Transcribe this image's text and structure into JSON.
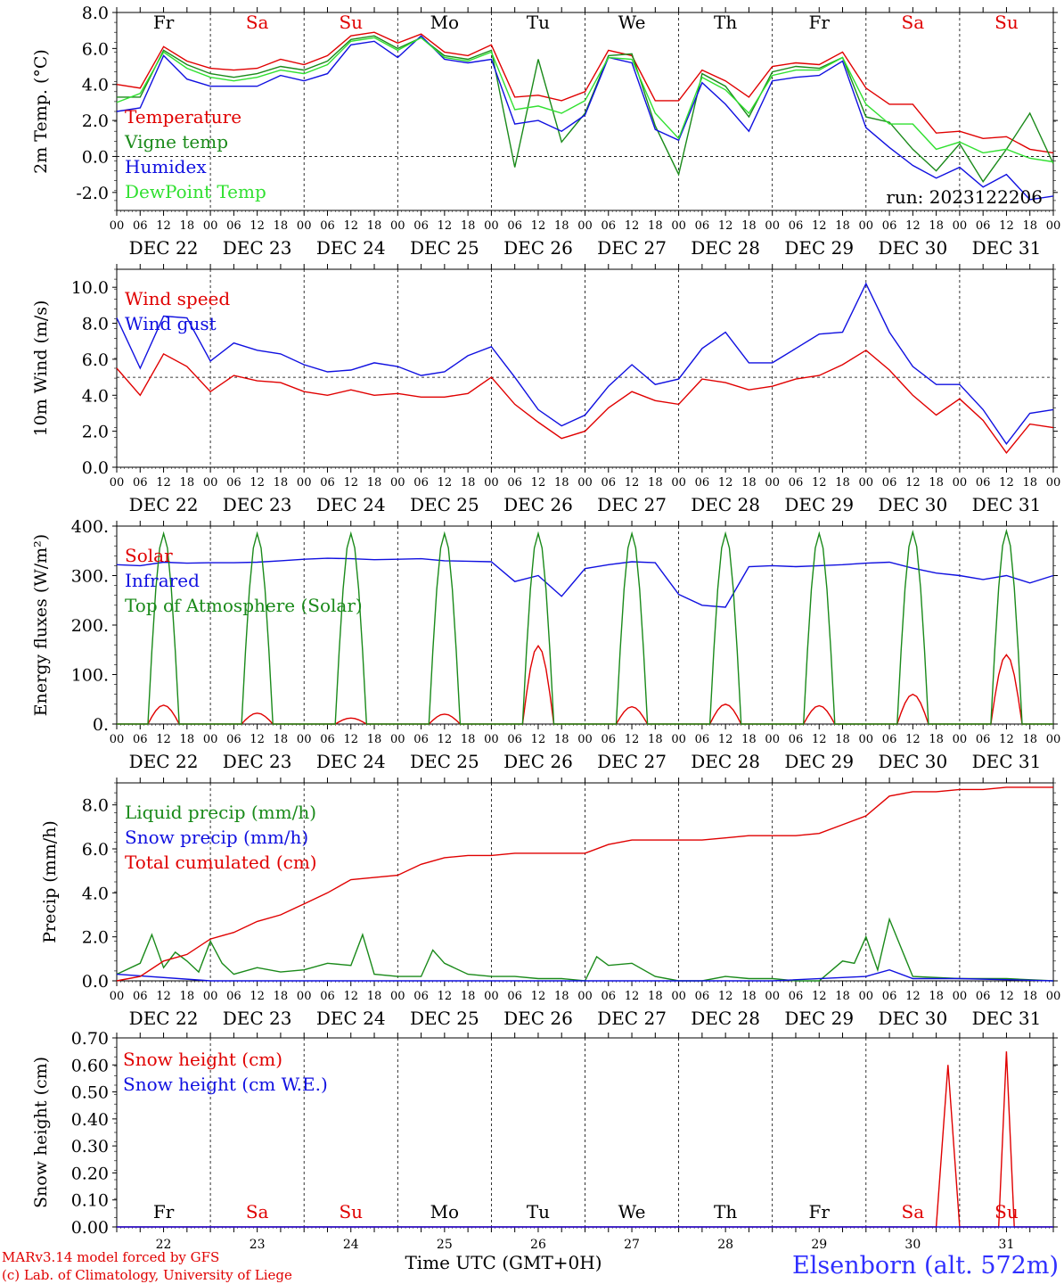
{
  "page": {
    "footer_model": "MARv3.14 model forced by GFS",
    "footer_lab": "(c) Lab. of Climatology, University of Liege",
    "station": "Elsenborn (alt. 572m)",
    "x_axis_title": "Time UTC (GMT+0H)",
    "run_label": "run: 2023122206"
  },
  "colors": {
    "red": "#e00000",
    "blue": "#1010e0",
    "darkgreen": "#1a8a1a",
    "lightgreen": "#30e030",
    "weekend": "#e00000",
    "weekday": "#000000"
  },
  "time_axis": {
    "hour_ticks": [
      "00",
      "06",
      "12",
      "18"
    ],
    "date_labels": [
      "DEC 22",
      "DEC 23",
      "DEC 24",
      "DEC 25",
      "DEC 26",
      "DEC 27",
      "DEC 28",
      "DEC 29",
      "DEC 30",
      "DEC 31"
    ],
    "day_names": [
      "Fr",
      "Sa",
      "Su",
      "Mo",
      "Tu",
      "We",
      "Th",
      "Fr",
      "Sa",
      "Su"
    ],
    "day_weekend": [
      false,
      true,
      true,
      false,
      false,
      false,
      false,
      false,
      true,
      true
    ],
    "day_numbers": [
      "22",
      "23",
      "24",
      "25",
      "26",
      "27",
      "28",
      "29",
      "30",
      "31"
    ]
  },
  "chart_data": [
    {
      "type": "line",
      "ylabel": "2m Temp. (°C)",
      "ylim": [
        -3,
        8
      ],
      "yticks": [
        "8.0",
        "6.0",
        "4.0",
        "2.0",
        "0.0",
        "-2.0"
      ],
      "x_unit": "hours since DEC 22 00 UTC",
      "ref_line": 0,
      "series": [
        {
          "name": "Temperature",
          "color": "#e00000",
          "x": [
            0,
            6,
            12,
            18,
            24,
            30,
            36,
            42,
            48,
            54,
            60,
            66,
            72,
            78,
            84,
            90,
            96,
            102,
            108,
            114,
            120,
            126,
            132,
            138,
            144,
            150,
            156,
            162,
            168,
            174,
            180,
            186,
            192,
            198,
            204,
            210,
            216,
            222,
            228,
            234,
            240
          ],
          "values": [
            4.0,
            3.8,
            6.1,
            5.3,
            4.9,
            4.8,
            4.9,
            5.4,
            5.1,
            5.6,
            6.7,
            6.9,
            6.3,
            6.8,
            5.8,
            5.6,
            6.2,
            3.3,
            3.4,
            3.1,
            3.6,
            5.9,
            5.6,
            3.1,
            3.1,
            4.8,
            4.2,
            3.3,
            5.0,
            5.2,
            5.1,
            5.8,
            3.8,
            2.9,
            2.9,
            1.3,
            1.4,
            1.0,
            1.1,
            0.4,
            0.2
          ]
        },
        {
          "name": "Vigne temp",
          "color": "#1a8a1a",
          "x": [
            0,
            6,
            12,
            18,
            24,
            30,
            36,
            42,
            48,
            54,
            60,
            66,
            72,
            78,
            84,
            90,
            96,
            102,
            108,
            114,
            120,
            126,
            132,
            138,
            144,
            150,
            156,
            162,
            168,
            174,
            180,
            186,
            192,
            198,
            204,
            210,
            216,
            222,
            228,
            234,
            240
          ],
          "values": [
            3.3,
            3.3,
            5.9,
            5.1,
            4.6,
            4.4,
            4.6,
            5.0,
            4.8,
            5.3,
            6.5,
            6.7,
            6.0,
            6.6,
            5.6,
            5.4,
            5.9,
            -0.6,
            5.4,
            0.8,
            2.4,
            5.6,
            5.7,
            1.7,
            -1.0,
            4.6,
            3.9,
            2.2,
            4.7,
            5.0,
            4.9,
            5.5,
            2.2,
            1.9,
            0.4,
            -0.8,
            0.7,
            -1.4,
            0.4,
            2.4,
            -0.4
          ]
        },
        {
          "name": "Humidex",
          "color": "#1010e0",
          "x": [
            0,
            6,
            12,
            18,
            24,
            30,
            36,
            42,
            48,
            54,
            60,
            66,
            72,
            78,
            84,
            90,
            96,
            102,
            108,
            114,
            120,
            126,
            132,
            138,
            144,
            150,
            156,
            162,
            168,
            174,
            180,
            186,
            192,
            198,
            204,
            210,
            216,
            222,
            228,
            234,
            240
          ],
          "values": [
            2.5,
            2.7,
            5.6,
            4.3,
            3.9,
            3.9,
            3.9,
            4.5,
            4.2,
            4.6,
            6.2,
            6.4,
            5.5,
            6.7,
            5.4,
            5.2,
            5.4,
            1.8,
            2.0,
            1.4,
            2.3,
            5.5,
            5.2,
            1.5,
            0.9,
            4.1,
            2.9,
            1.4,
            4.2,
            4.4,
            4.5,
            5.3,
            1.6,
            0.5,
            -0.5,
            -1.2,
            -0.6,
            -1.7,
            -1.0,
            -2.4,
            -2.2
          ]
        },
        {
          "name": "DewPoint Temp",
          "color": "#30e030",
          "x": [
            0,
            6,
            12,
            18,
            24,
            30,
            36,
            42,
            48,
            54,
            60,
            66,
            72,
            78,
            84,
            90,
            96,
            102,
            108,
            114,
            120,
            126,
            132,
            138,
            144,
            150,
            156,
            162,
            168,
            174,
            180,
            186,
            192,
            198,
            204,
            210,
            216,
            222,
            228,
            234,
            240
          ],
          "values": [
            3.0,
            3.5,
            5.8,
            4.9,
            4.4,
            4.2,
            4.4,
            4.8,
            4.6,
            5.1,
            6.4,
            6.6,
            5.9,
            6.6,
            5.5,
            5.3,
            5.8,
            2.6,
            2.8,
            2.4,
            3.1,
            5.5,
            5.4,
            2.4,
            1.0,
            4.4,
            3.7,
            2.4,
            4.5,
            4.8,
            4.8,
            5.5,
            2.9,
            1.8,
            1.8,
            0.4,
            0.8,
            0.2,
            0.4,
            -0.1,
            -0.3
          ]
        }
      ]
    },
    {
      "type": "line",
      "ylabel": "10m Wind (m/s)",
      "ylim": [
        0,
        11
      ],
      "yticks": [
        "10.0",
        "8.0",
        "6.0",
        "4.0",
        "2.0",
        "0.0"
      ],
      "x_unit": "hours since DEC 22 00 UTC",
      "ref_line": 5,
      "series": [
        {
          "name": "Wind speed",
          "color": "#e00000",
          "x": [
            0,
            6,
            12,
            18,
            24,
            30,
            36,
            42,
            48,
            54,
            60,
            66,
            72,
            78,
            84,
            90,
            96,
            102,
            108,
            114,
            120,
            126,
            132,
            138,
            144,
            150,
            156,
            162,
            168,
            174,
            180,
            186,
            192,
            198,
            204,
            210,
            216,
            222,
            228,
            234,
            240
          ],
          "values": [
            5.5,
            4.0,
            6.3,
            5.6,
            4.2,
            5.1,
            4.8,
            4.7,
            4.2,
            4.0,
            4.3,
            4.0,
            4.1,
            3.9,
            3.9,
            4.1,
            5.0,
            3.5,
            2.5,
            1.6,
            2.0,
            3.3,
            4.2,
            3.7,
            3.5,
            4.9,
            4.7,
            4.3,
            4.5,
            4.9,
            5.1,
            5.7,
            6.5,
            5.4,
            4.0,
            2.9,
            3.8,
            2.6,
            0.8,
            2.4,
            2.2
          ]
        },
        {
          "name": "Wind gust",
          "color": "#1010e0",
          "x": [
            0,
            6,
            12,
            18,
            24,
            30,
            36,
            42,
            48,
            54,
            60,
            66,
            72,
            78,
            84,
            90,
            96,
            102,
            108,
            114,
            120,
            126,
            132,
            138,
            144,
            150,
            156,
            162,
            168,
            174,
            180,
            186,
            192,
            198,
            204,
            210,
            216,
            222,
            228,
            234,
            240
          ],
          "values": [
            8.3,
            5.5,
            8.4,
            8.3,
            5.9,
            6.9,
            6.5,
            6.3,
            5.7,
            5.3,
            5.4,
            5.8,
            5.6,
            5.1,
            5.3,
            6.2,
            6.7,
            5.0,
            3.2,
            2.3,
            2.9,
            4.5,
            5.7,
            4.6,
            4.9,
            6.6,
            7.5,
            5.8,
            5.8,
            6.6,
            7.4,
            7.5,
            10.2,
            7.5,
            5.6,
            4.6,
            4.6,
            3.2,
            1.3,
            3.0,
            3.2
          ]
        }
      ]
    },
    {
      "type": "line",
      "ylabel": "Energy fluxes (W/m²)",
      "ylim": [
        0,
        400
      ],
      "yticks": [
        "400.",
        "300.",
        "200.",
        "100.",
        "0."
      ],
      "x_unit": "hours since DEC 22 00 UTC",
      "series": [
        {
          "name": "Solar",
          "color": "#e00000",
          "peaks": [
            38,
            22,
            12,
            20,
            158,
            35,
            40,
            37,
            60,
            140
          ]
        },
        {
          "name": "Infrared",
          "color": "#1010e0",
          "x": [
            0,
            6,
            12,
            18,
            24,
            30,
            36,
            42,
            48,
            54,
            60,
            66,
            72,
            78,
            84,
            90,
            96,
            102,
            108,
            114,
            120,
            126,
            132,
            138,
            144,
            150,
            156,
            162,
            168,
            174,
            180,
            186,
            192,
            198,
            204,
            210,
            216,
            222,
            228,
            234,
            240
          ],
          "values": [
            322,
            320,
            327,
            325,
            326,
            326,
            327,
            330,
            333,
            335,
            334,
            332,
            333,
            334,
            330,
            329,
            328,
            288,
            300,
            258,
            314,
            322,
            328,
            326,
            262,
            240,
            236,
            318,
            320,
            318,
            320,
            322,
            325,
            327,
            315,
            305,
            300,
            292,
            300,
            285,
            300
          ]
        },
        {
          "name": "Top of Atmosphere (Solar)",
          "color": "#1a8a1a",
          "peaks": [
            385,
            385,
            385,
            385,
            385,
            385,
            385,
            385,
            388,
            390
          ]
        }
      ]
    },
    {
      "type": "line",
      "ylabel": "Precip (mm/h)",
      "ylim": [
        0,
        9
      ],
      "yticks": [
        "8.0",
        "6.0",
        "4.0",
        "2.0",
        "0.0"
      ],
      "x_unit": "hours since DEC 22 00 UTC",
      "series": [
        {
          "name": "Liquid precip (mm/h)",
          "color": "#1a8a1a",
          "x": [
            0,
            6,
            9,
            12,
            15,
            18,
            21,
            24,
            27,
            30,
            36,
            42,
            48,
            54,
            60,
            63,
            66,
            72,
            78,
            81,
            84,
            90,
            96,
            102,
            108,
            114,
            120,
            123,
            126,
            132,
            138,
            144,
            150,
            156,
            162,
            168,
            174,
            180,
            186,
            189,
            192,
            195,
            198,
            204,
            216,
            228,
            240
          ],
          "values": [
            0.3,
            0.8,
            2.1,
            0.6,
            1.3,
            0.9,
            0.4,
            1.8,
            0.8,
            0.3,
            0.6,
            0.4,
            0.5,
            0.8,
            0.7,
            2.1,
            0.3,
            0.2,
            0.2,
            1.4,
            0.8,
            0.3,
            0.2,
            0.2,
            0.1,
            0.1,
            0.0,
            1.1,
            0.7,
            0.8,
            0.2,
            0.0,
            0.0,
            0.2,
            0.1,
            0.1,
            0.0,
            0.0,
            0.9,
            0.8,
            2.0,
            0.5,
            2.8,
            0.2,
            0.1,
            0.1,
            0.0
          ]
        },
        {
          "name": "Snow precip (mm/h)",
          "color": "#1010e0",
          "x": [
            0,
            24,
            48,
            72,
            96,
            120,
            144,
            168,
            192,
            198,
            204,
            216,
            240
          ],
          "values": [
            0.3,
            0.0,
            0.0,
            0.0,
            0.0,
            0.0,
            0.0,
            0.0,
            0.2,
            0.5,
            0.1,
            0.1,
            0.0
          ]
        },
        {
          "name": "Total cumulated (cm)",
          "color": "#e00000",
          "x": [
            0,
            6,
            12,
            18,
            24,
            30,
            36,
            42,
            48,
            54,
            60,
            66,
            72,
            78,
            84,
            90,
            96,
            102,
            108,
            114,
            120,
            126,
            132,
            138,
            144,
            150,
            156,
            162,
            168,
            174,
            180,
            186,
            192,
            198,
            204,
            210,
            216,
            222,
            228,
            234,
            240
          ],
          "values": [
            0.0,
            0.2,
            0.9,
            1.2,
            1.9,
            2.2,
            2.7,
            3.0,
            3.5,
            4.0,
            4.6,
            4.7,
            4.8,
            5.3,
            5.6,
            5.7,
            5.7,
            5.8,
            5.8,
            5.8,
            5.8,
            6.2,
            6.4,
            6.4,
            6.4,
            6.4,
            6.5,
            6.6,
            6.6,
            6.6,
            6.7,
            7.1,
            7.5,
            8.4,
            8.6,
            8.6,
            8.7,
            8.7,
            8.8,
            8.8,
            8.8
          ]
        }
      ]
    },
    {
      "type": "line",
      "ylabel": "Snow height (cm)",
      "ylim": [
        0,
        0.7
      ],
      "yticks": [
        "0.70",
        "0.60",
        "0.50",
        "0.40",
        "0.30",
        "0.20",
        "0.10",
        "0.00"
      ],
      "x_unit": "hours since DEC 22 00 UTC",
      "series": [
        {
          "name": "Snow height (cm)",
          "color": "#e00000",
          "x": [
            0,
            210,
            213,
            216,
            226,
            228,
            230,
            240
          ],
          "values": [
            0,
            0,
            0.6,
            0,
            0,
            0.65,
            0,
            0
          ]
        },
        {
          "name": "Snow height (cm W.E.)",
          "color": "#1010e0",
          "x": [
            0,
            240
          ],
          "values": [
            0,
            0
          ]
        }
      ]
    }
  ]
}
